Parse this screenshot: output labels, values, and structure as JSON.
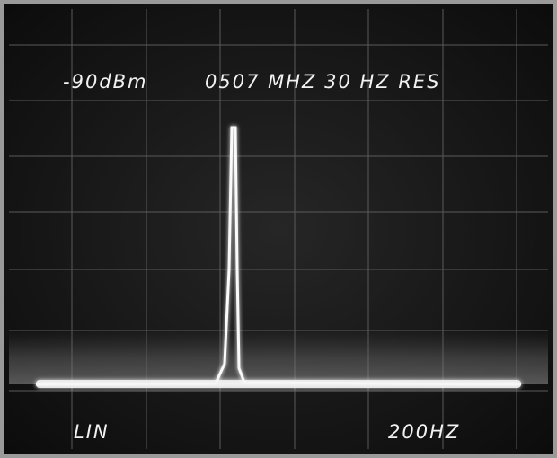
{
  "header": {
    "reference_level": "-90dBm",
    "readout": "0507 MHZ 30 HZ RES"
  },
  "footer": {
    "scale": "LIN",
    "span": "200HZ"
  }
}
